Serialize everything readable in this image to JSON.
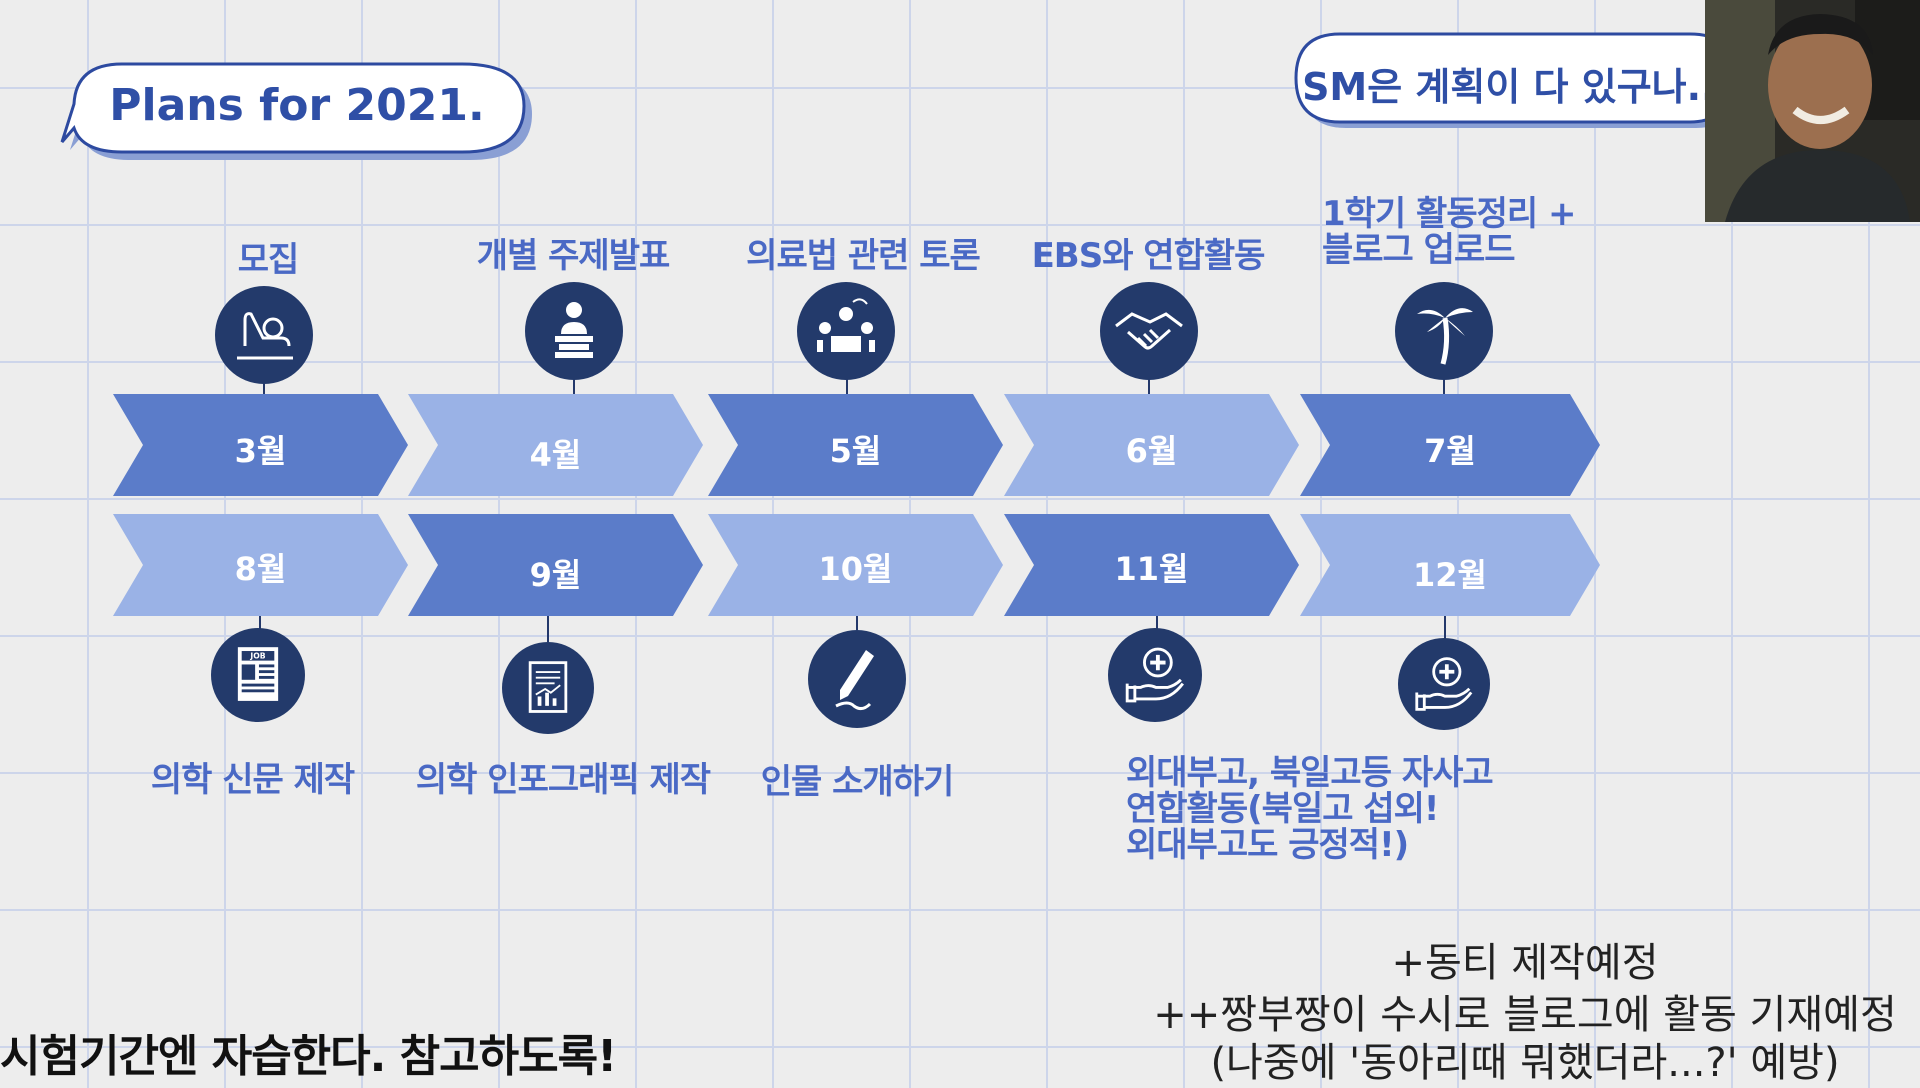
{
  "title": "Plans for 2021.",
  "bubble_quote": "SM은 계획이 다 있구나...",
  "top_row": [
    {
      "month": "3월",
      "activity": "모집",
      "icon": "waving-person-icon",
      "color": "#5b7cc9"
    },
    {
      "month": "4월",
      "activity": "개별 주제발표",
      "icon": "presenter-podium-icon",
      "color": "#9ab2e6"
    },
    {
      "month": "5월",
      "activity": "의료법 관련 토론",
      "icon": "group-discussion-icon",
      "color": "#5b7cc9"
    },
    {
      "month": "6월",
      "activity": "EBS와 연합활동",
      "icon": "handshake-icon",
      "color": "#9ab2e6"
    },
    {
      "month": "7월",
      "activity_lines": [
        "1학기 활동정리 +",
        "블로그 업로드"
      ],
      "icon": "palm-tree-icon",
      "color": "#5b7cc9"
    }
  ],
  "bottom_row": [
    {
      "month": "8월",
      "activity": "의학 신문 제작",
      "icon": "newspaper-job-icon",
      "color": "#9ab2e6"
    },
    {
      "month": "9월",
      "activity": "의학 인포그래픽 제작",
      "icon": "chart-document-icon",
      "color": "#5b7cc9"
    },
    {
      "month": "10월",
      "activity": "인물 소개하기",
      "icon": "pen-signature-icon",
      "color": "#9ab2e6"
    },
    {
      "month": "11월",
      "activity_lines": [
        "외대부고, 북일고등 자사고",
        "연합활동(북일고 섭외!",
        "외대부고도 긍정적!)"
      ],
      "icon": "medical-hand-icon",
      "color": "#5b7cc9"
    },
    {
      "month": "12월",
      "icon": "medical-hand-icon",
      "color": "#9ab2e6"
    }
  ],
  "footer_left": "시험기간엔 자습한다. 참고하도록!",
  "notes": [
    "+동티 제작예정",
    "++짱부짱이 수시로 블로그에 활동 기재예정",
    "(나중에 '동아리때 뭐했더라...?' 예방)"
  ]
}
